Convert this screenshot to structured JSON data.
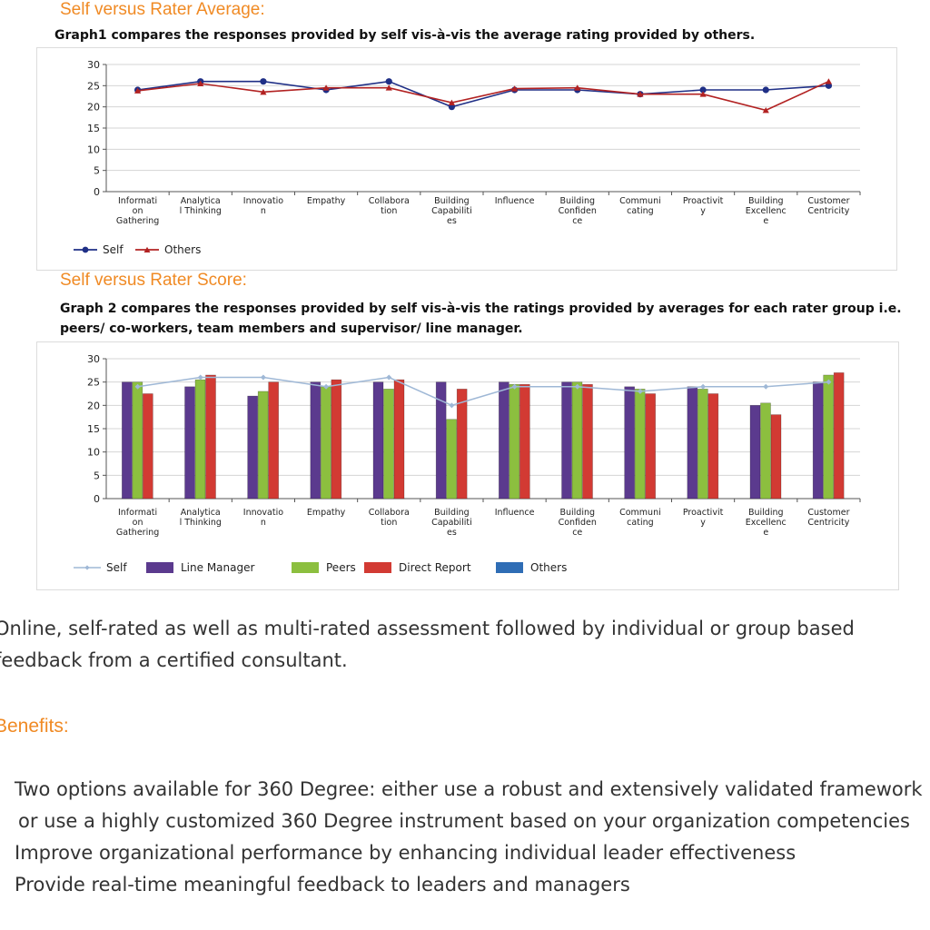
{
  "section1": {
    "heading": "Self versus Rater Average:",
    "caption": "Graph1 compares the responses provided by self vis-à-vis the average rating provided by others."
  },
  "section2": {
    "heading": "Self versus Rater Score:",
    "caption_line1": "Graph 2 compares the responses provided by self vis-à-vis the ratings provided by averages for each rater group i.e.",
    "caption_line2": "peers/ co-workers, team members and supervisor/ line manager."
  },
  "description_line1": "Online, self-rated as well as multi-rated assessment followed by individual or group based",
  "description_line2": "feedback from a certified consultant.",
  "benefits_heading": "Benefits:",
  "benefits": [
    "Two options available for 360 Degree: either use a robust and extensively validated framework or use a highly customized 360 Degree instrument based on your organization competencies",
    "Improve organizational performance by enhancing individual leader effectiveness",
    "Provide real-time meaningful feedback to leaders and managers"
  ],
  "colors": {
    "self_line": "#1f2f86",
    "others_line": "#b22222",
    "self_faint": "#9fb8d6",
    "line_manager": "#5b3a8e",
    "peers": "#8cbf3f",
    "direct_report": "#d23a33",
    "others_bar": "#2f6db5"
  },
  "chart_data": [
    {
      "type": "line",
      "categories": [
        [
          "Informati",
          "on",
          "Gathering"
        ],
        [
          "Analytica",
          "l Thinking"
        ],
        [
          "Innovatio",
          "n"
        ],
        [
          "Empathy"
        ],
        [
          "Collabora",
          "tion"
        ],
        [
          "Building",
          "Capabiliti",
          "es"
        ],
        [
          "Influence"
        ],
        [
          "Building",
          "Confiden",
          "ce"
        ],
        [
          "Communi",
          "cating"
        ],
        [
          "Proactivit",
          "y"
        ],
        [
          "Building",
          "Excellenc",
          "e"
        ],
        [
          "Customer",
          "Centricity"
        ]
      ],
      "yticks": [
        "30",
        "25",
        "20",
        "15",
        "10",
        "5",
        "0"
      ],
      "ylim": [
        0,
        30
      ],
      "grid": true,
      "series": [
        {
          "name": "Self",
          "values": [
            24,
            26,
            26,
            24,
            26,
            20,
            24,
            24,
            23,
            24,
            24,
            25
          ]
        },
        {
          "name": "Others",
          "values": [
            23.8,
            25.5,
            23.5,
            24.5,
            24.5,
            21,
            24.3,
            24.5,
            23,
            23,
            19.2,
            26
          ]
        }
      ],
      "legend": "bottom-left"
    },
    {
      "type": "bar",
      "categories": [
        [
          "Informati",
          "on",
          "Gathering"
        ],
        [
          "Analytica",
          "l Thinking"
        ],
        [
          "Innovatio",
          "n"
        ],
        [
          "Empathy"
        ],
        [
          "Collabora",
          "tion"
        ],
        [
          "Building",
          "Capabiliti",
          "es"
        ],
        [
          "Influence"
        ],
        [
          "Building",
          "Confiden",
          "ce"
        ],
        [
          "Communi",
          "cating"
        ],
        [
          "Proactivit",
          "y"
        ],
        [
          "Building",
          "Excellenc",
          "e"
        ],
        [
          "Customer",
          "Centricity"
        ]
      ],
      "yticks": [
        "30",
        "25",
        "20",
        "15",
        "10",
        "5",
        "0"
      ],
      "ylim": [
        0,
        30
      ],
      "grid": true,
      "self_line": {
        "name": "Self",
        "values": [
          24,
          26,
          26,
          24,
          26,
          20,
          24,
          24,
          23,
          24,
          24,
          25
        ]
      },
      "series": [
        {
          "name": "Line Manager",
          "values": [
            25,
            24,
            22,
            25,
            25,
            25,
            25,
            25,
            24,
            24,
            20,
            25
          ]
        },
        {
          "name": "Peers",
          "values": [
            25,
            25.5,
            23,
            24,
            23.5,
            17,
            24.5,
            25,
            23.5,
            23.5,
            20.5,
            26.5
          ]
        },
        {
          "name": "Direct Report",
          "values": [
            22.5,
            26.5,
            25,
            25.5,
            25.5,
            23.5,
            24.5,
            24.5,
            22.5,
            22.5,
            18,
            27
          ]
        }
      ],
      "legend_entries": [
        "Self",
        "Line Manager",
        "Peers",
        "Direct Report",
        "Others"
      ],
      "legend": "bottom-left"
    }
  ]
}
